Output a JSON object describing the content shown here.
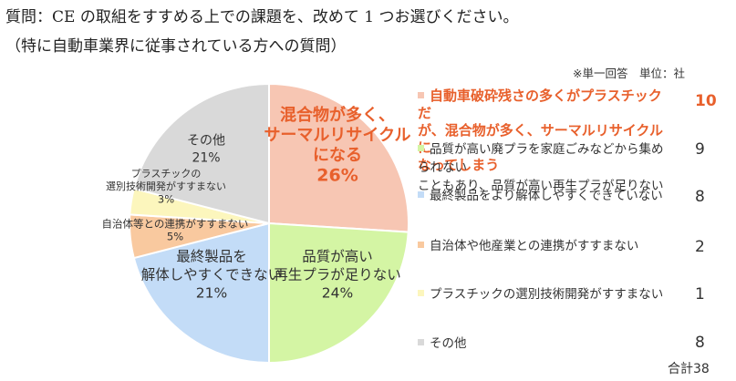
{
  "question": "質問：CE の取組をすすめる上での課題を、改めて 1 つお選びください。",
  "subquestion": "（特に自動車業界に従事されている方への質問）",
  "note": "※単一回答　単位：社",
  "total": "合計38",
  "chart_data": {
    "type": "pie",
    "slices": [
      {
        "label_lines": [
          "混合物が多く、",
          "サーマルリサイクル",
          "になる"
        ],
        "pct": "26%",
        "value": 26,
        "color": "#f7c6b3"
      },
      {
        "label_lines": [
          "品質が高い",
          "再生プラが足りない"
        ],
        "pct": "24%",
        "value": 24,
        "color": "#d4f5a4"
      },
      {
        "label_lines": [
          "最終製品を",
          "解体しやすくできない"
        ],
        "pct": "21%",
        "value": 21,
        "color": "#c3dcf7"
      },
      {
        "label_lines": [
          "自治体等との連携がすすまない"
        ],
        "pct": "5%",
        "value": 5,
        "color": "#f9c99f"
      },
      {
        "label_lines": [
          "プラスチックの",
          "選別技術開発がすすまない"
        ],
        "pct": "3%",
        "value": 3,
        "color": "#fcf6bd"
      },
      {
        "label_lines": [
          "その他"
        ],
        "pct": "21%",
        "value": 21,
        "color": "#d9d9d9"
      }
    ],
    "legend": [
      {
        "lines": [
          "自動車破砕残さの多くがプラスチックだ",
          "が、混合物が多く、サーマルリサイクルに",
          "なってしまう"
        ],
        "count": "10",
        "color": "#f7c6b3",
        "highlight": true
      },
      {
        "lines": [
          "品質が高い廃プラを家庭ごみなどから集められない",
          "こともあり、品質が高い再生プラが足りない"
        ],
        "count": "9",
        "color": "#d4f5a4",
        "highlight": false
      },
      {
        "lines": [
          "最終製品をより解体しやすくできていない"
        ],
        "count": "8",
        "color": "#c3dcf7",
        "highlight": false
      },
      {
        "lines": [
          "自治体や他産業との連携がすすまない"
        ],
        "count": "2",
        "color": "#f9c99f",
        "highlight": false
      },
      {
        "lines": [
          "プラスチックの選別技術開発がすすまない"
        ],
        "count": "1",
        "color": "#fcf6bd",
        "highlight": false
      },
      {
        "lines": [
          "その他"
        ],
        "count": "8",
        "color": "#d9d9d9",
        "highlight": false
      }
    ]
  }
}
